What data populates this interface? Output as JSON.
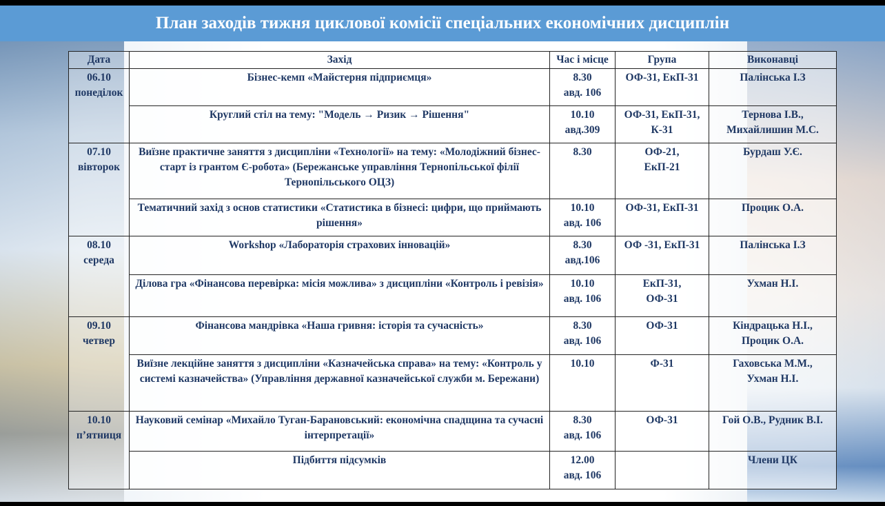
{
  "title": "План заходів тижня циклової комісії спеціальних економічних дисциплін",
  "columns": [
    "Дата",
    "Захід",
    "Час і місце",
    "Група",
    "Виконавці"
  ],
  "days": [
    {
      "date": "06.10",
      "day": "понеділок",
      "events": [
        {
          "event": "Бізнес-кемп «Майстерня підприємця»",
          "time": "8.30",
          "place": "авд. 106",
          "group": "ОФ-31, ЕкП-31",
          "group2": "",
          "performers": "Палінська І.З",
          "performers2": ""
        },
        {
          "event": "Круглий стіл на тему: \"Модель → Ризик → Рішення\"",
          "time": "10.10",
          "place": "авд.309",
          "group": "ОФ-31, ЕкП-31,",
          "group2": "К-31",
          "performers": "Тернова І.В.,",
          "performers2": "Михайлишин М.С."
        }
      ]
    },
    {
      "date": "07.10",
      "day": "вівторок",
      "events": [
        {
          "event": "Виїзне практичне заняття з дисципліни «Технології»  на тему: «Молодіжний бізнес-старт із грантом Є-робота» (Бережанське управління Тернопільської філії Тернопільського ОЦЗ)",
          "time": "8.30",
          "place": "",
          "group": "ОФ-21,",
          "group2": "ЕкП-21",
          "performers": "Бурдаш У.Є.",
          "performers2": ""
        },
        {
          "event": "Тематичний захід з основ статистики «Статистика в бізнесі: цифри, що приймають рішення»",
          "time": "10.10",
          "place": "авд. 106",
          "group": "ОФ-31, ЕкП-31",
          "group2": "",
          "performers": "Процик О.А.",
          "performers2": ""
        }
      ]
    },
    {
      "date": "08.10",
      "day": "середа",
      "events": [
        {
          "event": "Workshop «Лабораторія страхових інновацій»",
          "time": "8.30",
          "place": "авд.106",
          "group": "ОФ -31, ЕкП-31",
          "group2": "",
          "performers": "Палінська І.З",
          "performers2": ""
        },
        {
          "event": "Ділова гра «Фінансова перевірка: місія можлива» з дисципліни «Контроль і ревізія»",
          "time": "10.10",
          "place": "авд. 106",
          "group": "ЕкП-31,",
          "group2": "ОФ-31",
          "performers": "Ухман Н.І.",
          "performers2": ""
        }
      ]
    },
    {
      "date": "09.10",
      "day": "четвер",
      "events": [
        {
          "event": "Фінансова мандрівка «Наша гривня: історія та сучасність»",
          "time": "8.30",
          "place": "авд. 106",
          "group": "ОФ-31",
          "group2": "",
          "performers": "Кіндрацька Н.І.,",
          "performers2": "Процик О.А."
        },
        {
          "event": "Виїзне лекційне заняття з дисципліни «Казначейська справа» на тему: «Контроль у системі казначейства» (Управління державної казначейської служби м. Бережани)",
          "time": "10.10",
          "place": "",
          "group": "Ф-31",
          "group2": "",
          "performers": "Гаховська М.М.,",
          "performers2": "Ухман Н.І."
        }
      ]
    },
    {
      "date": "10.10",
      "day": "п’ятниця",
      "events": [
        {
          "event": "Науковий семінар «Михайло Туган-Барановський: економічна спадщина та сучасні інтерпретації»",
          "time": "8.30",
          "place": "авд. 106",
          "group": "ОФ-31",
          "group2": "",
          "performers": "Гой О.В., Рудник В.І.",
          "performers2": ""
        },
        {
          "event": "Підбиття підсумків",
          "time": "12.00",
          "place": "авд. 106",
          "group": "",
          "group2": "",
          "performers": "Члени ЦК",
          "performers2": ""
        }
      ]
    }
  ]
}
